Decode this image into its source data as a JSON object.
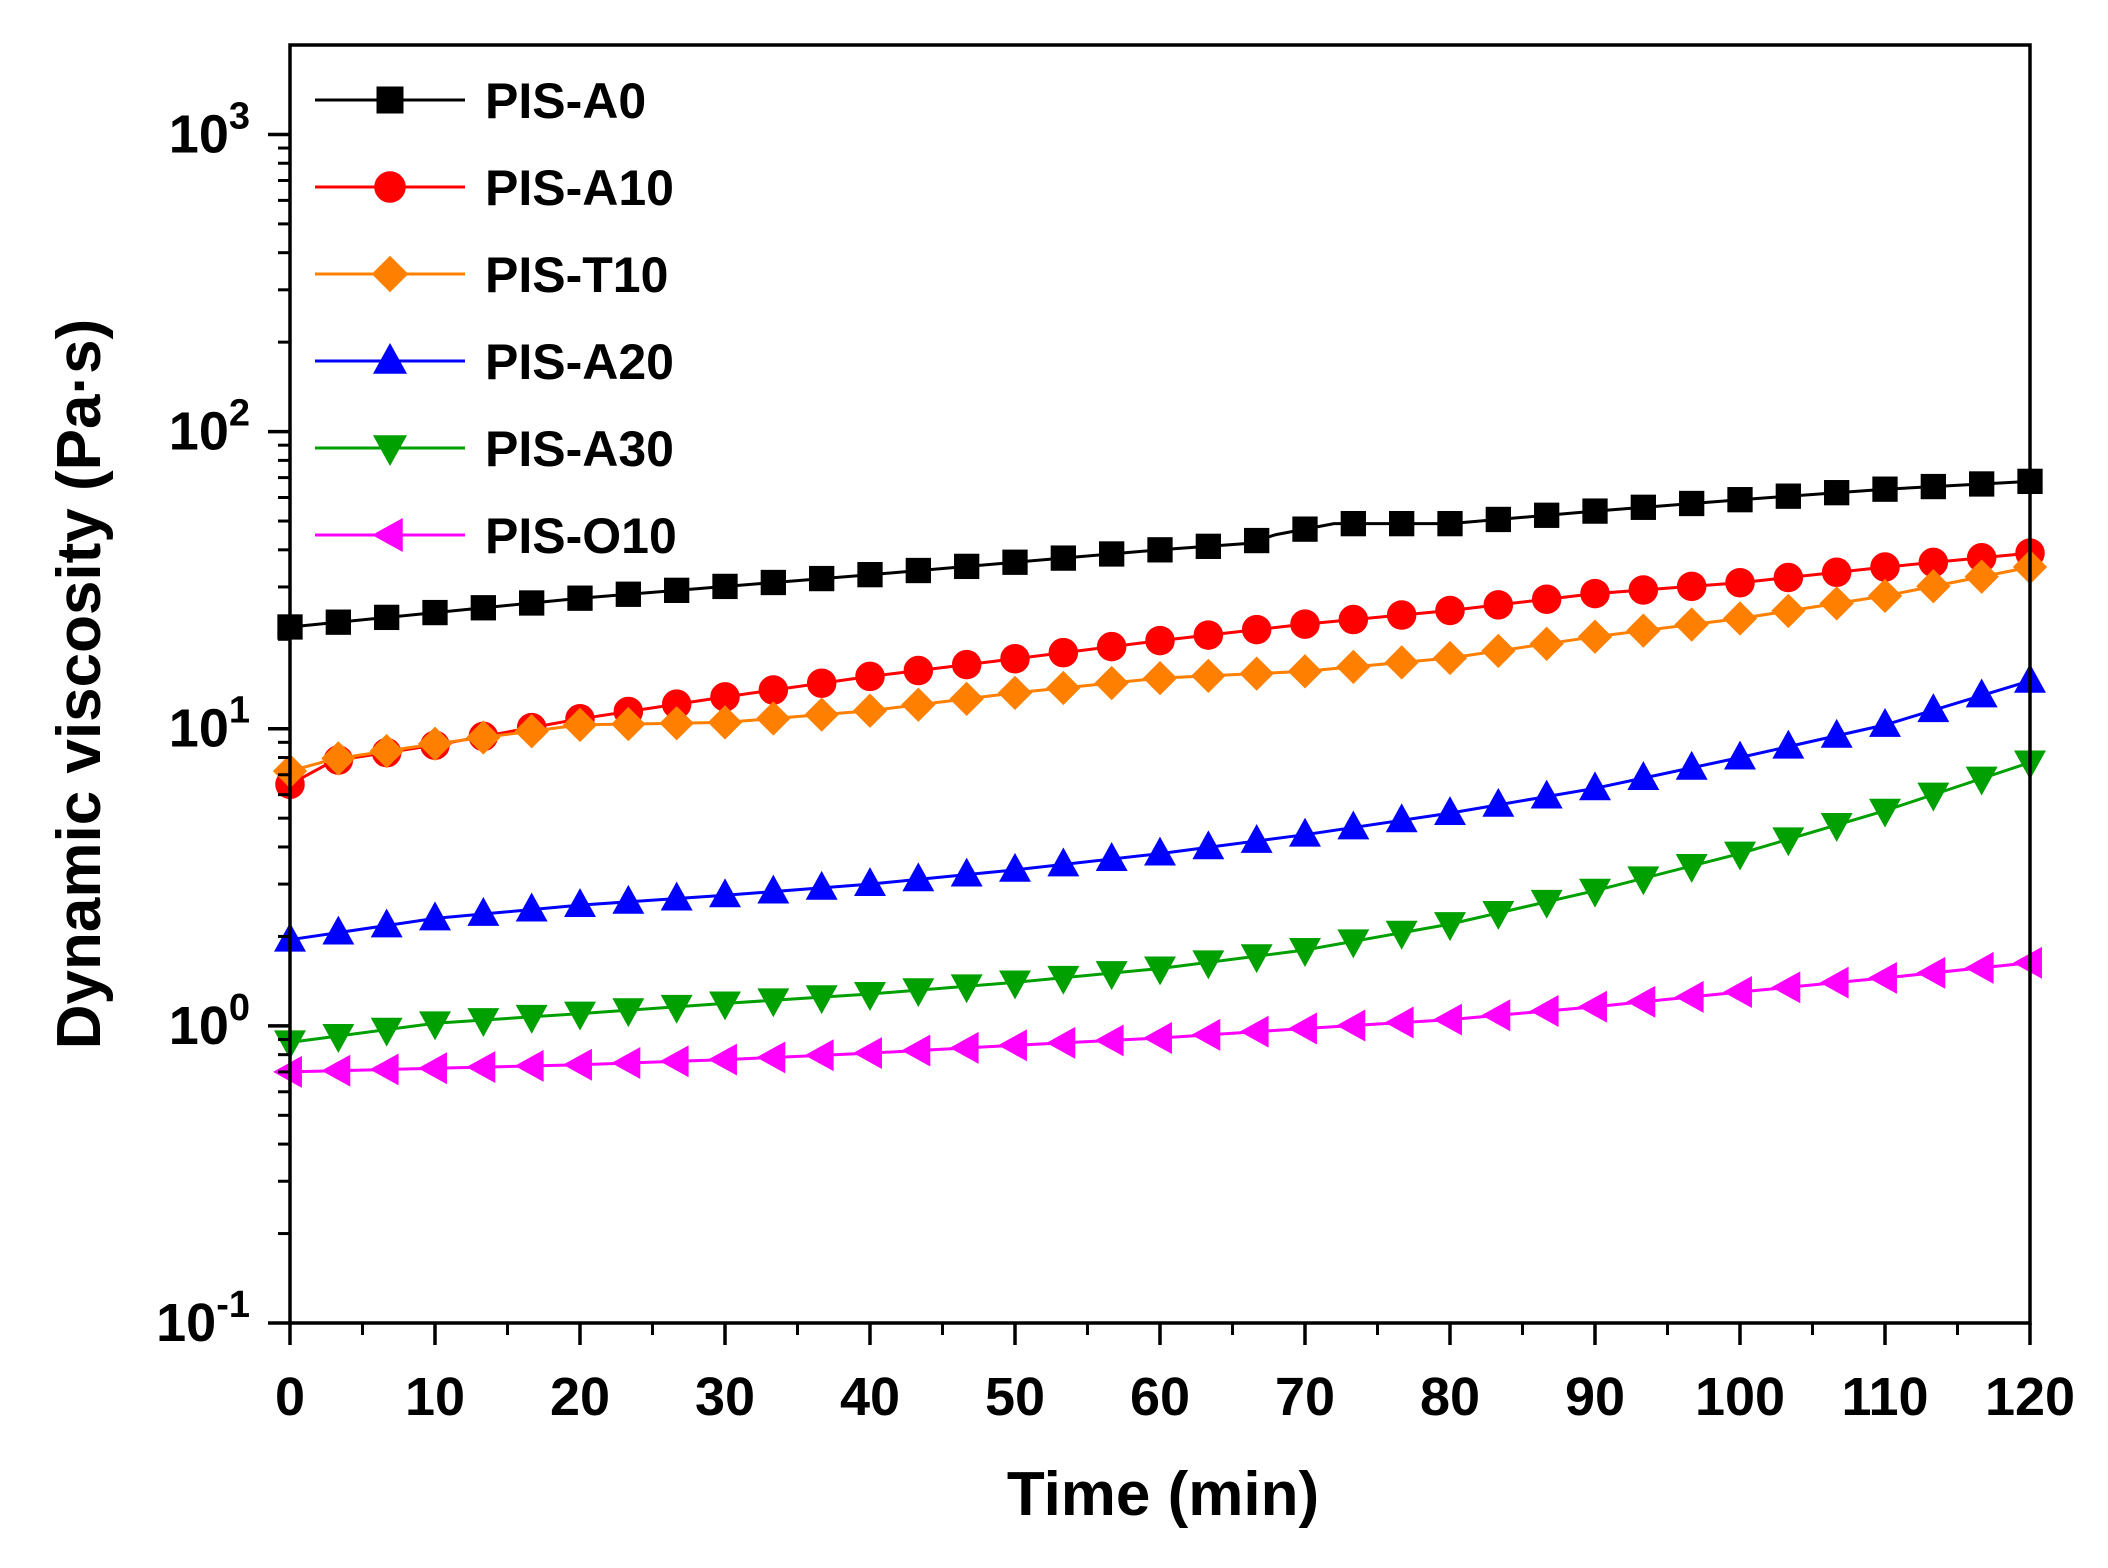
{
  "chart_data": {
    "type": "line",
    "title": "",
    "xlabel": "Time (min)",
    "ylabel": "Dynamic viscosity (Pa·s)",
    "xlim": [
      0,
      120
    ],
    "ylim": [
      0.1,
      2000
    ],
    "yscale": "log",
    "x_ticks": [
      0,
      10,
      20,
      30,
      40,
      50,
      60,
      70,
      80,
      90,
      100,
      110,
      120
    ],
    "y_ticks": [
      {
        "value": 0.1,
        "base": "10",
        "exp": "-1"
      },
      {
        "value": 1,
        "base": "10",
        "exp": "0"
      },
      {
        "value": 10,
        "base": "10",
        "exp": "1"
      },
      {
        "value": 100,
        "base": "10",
        "exp": "2"
      },
      {
        "value": 1000,
        "base": "10",
        "exp": "3"
      }
    ],
    "grid": false,
    "legend_position": "top-left",
    "series": [
      {
        "name": "PIS-A0",
        "color": "#000000",
        "marker": "square",
        "x": [
          0,
          20,
          40,
          60,
          66,
          68,
          72,
          80,
          90,
          100,
          110,
          120
        ],
        "y": [
          22,
          27.5,
          33,
          40,
          42,
          45,
          49,
          49,
          54,
          59,
          64,
          68
        ]
      },
      {
        "name": "PIS-A10",
        "color": "#ff0000",
        "marker": "circle",
        "x": [
          0,
          3,
          10,
          20,
          30,
          40,
          50,
          60,
          70,
          80,
          90,
          100,
          110,
          120
        ],
        "y": [
          6.5,
          7.8,
          8.8,
          10.8,
          12.8,
          15,
          17.2,
          19.8,
          22.5,
          25,
          28.5,
          31,
          35,
          39
        ]
      },
      {
        "name": "PIS-T10",
        "color": "#ff8000",
        "marker": "diamond",
        "x": [
          0,
          3,
          10,
          20,
          30,
          40,
          50,
          60,
          70,
          80,
          90,
          100,
          110,
          120
        ],
        "y": [
          7.2,
          7.9,
          8.9,
          10.3,
          10.5,
          11.5,
          13.2,
          14.8,
          15.6,
          17.3,
          20.4,
          23.5,
          28,
          35
        ]
      },
      {
        "name": "PIS-A20",
        "color": "#0000ff",
        "marker": "triangle-up",
        "x": [
          0,
          10,
          20,
          30,
          40,
          50,
          60,
          70,
          80,
          90,
          100,
          110,
          120
        ],
        "y": [
          1.95,
          2.3,
          2.55,
          2.75,
          3.0,
          3.35,
          3.8,
          4.4,
          5.2,
          6.3,
          8.0,
          10.3,
          14.5
        ]
      },
      {
        "name": "PIS-A30",
        "color": "#00a000",
        "marker": "triangle-down",
        "x": [
          0,
          10,
          20,
          30,
          40,
          50,
          60,
          70,
          80,
          90,
          100,
          110,
          120
        ],
        "y": [
          0.88,
          1.02,
          1.1,
          1.19,
          1.28,
          1.4,
          1.56,
          1.8,
          2.2,
          2.85,
          3.8,
          5.3,
          7.7
        ]
      },
      {
        "name": "PIS-O10",
        "color": "#ff00ff",
        "marker": "triangle-left",
        "x": [
          0,
          10,
          20,
          30,
          40,
          50,
          60,
          70,
          80,
          90,
          100,
          110,
          120
        ],
        "y": [
          0.7,
          0.72,
          0.74,
          0.77,
          0.81,
          0.86,
          0.91,
          0.98,
          1.05,
          1.16,
          1.3,
          1.45,
          1.63
        ]
      }
    ]
  }
}
